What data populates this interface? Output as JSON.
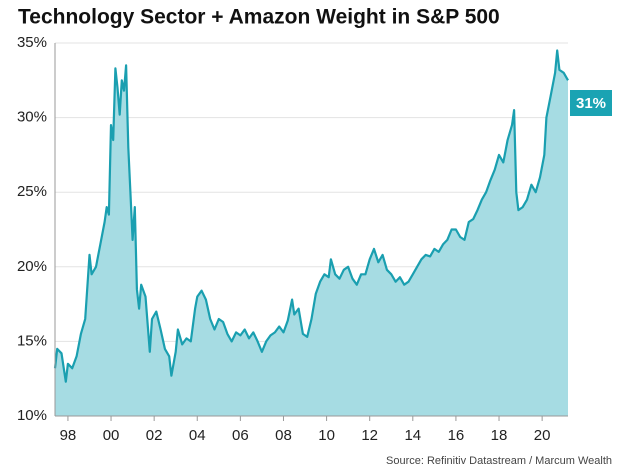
{
  "chart_data": {
    "type": "area",
    "title": "Technology Sector + Amazon Weight in S&P 500",
    "source": "Source: Refinitiv Datastream / Marcum Wealth",
    "annotation": "31%",
    "line_color": "#1a9fb0",
    "fill_color": "#a6dce3",
    "annotation_color": "#1aa3b3",
    "grid": true,
    "xlim": [
      1997.4,
      2021.2
    ],
    "xticks": [
      {
        "value": 1998,
        "label": "98"
      },
      {
        "value": 2000,
        "label": "00"
      },
      {
        "value": 2002,
        "label": "02"
      },
      {
        "value": 2004,
        "label": "04"
      },
      {
        "value": 2006,
        "label": "06"
      },
      {
        "value": 2008,
        "label": "08"
      },
      {
        "value": 2010,
        "label": "10"
      },
      {
        "value": 2012,
        "label": "12"
      },
      {
        "value": 2014,
        "label": "14"
      },
      {
        "value": 2016,
        "label": "16"
      },
      {
        "value": 2018,
        "label": "18"
      },
      {
        "value": 2020,
        "label": "20"
      }
    ],
    "ylim": [
      10,
      35
    ],
    "yticks": [
      {
        "value": 10,
        "label": "10%"
      },
      {
        "value": 15,
        "label": "15%"
      },
      {
        "value": 20,
        "label": "20%"
      },
      {
        "value": 25,
        "label": "25%"
      },
      {
        "value": 30,
        "label": "30%"
      },
      {
        "value": 35,
        "label": "35%"
      }
    ],
    "x": [
      1997.4,
      1997.5,
      1997.7,
      1997.9,
      1998.0,
      1998.2,
      1998.4,
      1998.6,
      1998.8,
      1999.0,
      1999.1,
      1999.3,
      1999.5,
      1999.7,
      1999.8,
      1999.9,
      2000.0,
      2000.1,
      2000.2,
      2000.3,
      2000.4,
      2000.5,
      2000.6,
      2000.7,
      2000.8,
      2000.9,
      2001.0,
      2001.1,
      2001.2,
      2001.3,
      2001.4,
      2001.6,
      2001.8,
      2001.9,
      2002.1,
      2002.3,
      2002.5,
      2002.7,
      2002.8,
      2003.0,
      2003.1,
      2003.3,
      2003.5,
      2003.7,
      2003.9,
      2004.0,
      2004.2,
      2004.4,
      2004.6,
      2004.8,
      2005.0,
      2005.2,
      2005.4,
      2005.6,
      2005.8,
      2006.0,
      2006.2,
      2006.4,
      2006.6,
      2006.8,
      2007.0,
      2007.2,
      2007.4,
      2007.6,
      2007.8,
      2008.0,
      2008.2,
      2008.4,
      2008.5,
      2008.7,
      2008.9,
      2009.1,
      2009.3,
      2009.5,
      2009.7,
      2009.9,
      2010.1,
      2010.2,
      2010.4,
      2010.6,
      2010.8,
      2011.0,
      2011.2,
      2011.4,
      2011.6,
      2011.8,
      2012.0,
      2012.2,
      2012.4,
      2012.6,
      2012.8,
      2013.0,
      2013.2,
      2013.4,
      2013.6,
      2013.8,
      2014.0,
      2014.2,
      2014.4,
      2014.6,
      2014.8,
      2015.0,
      2015.2,
      2015.4,
      2015.6,
      2015.8,
      2016.0,
      2016.2,
      2016.4,
      2016.6,
      2016.8,
      2017.0,
      2017.2,
      2017.4,
      2017.6,
      2017.8,
      2018.0,
      2018.2,
      2018.4,
      2018.6,
      2018.7,
      2018.8,
      2018.9,
      2019.1,
      2019.3,
      2019.5,
      2019.7,
      2019.9,
      2020.1,
      2020.2,
      2020.4,
      2020.6,
      2020.7,
      2020.8,
      2021.0,
      2021.2
    ],
    "values": [
      13.2,
      14.5,
      14.2,
      12.3,
      13.5,
      13.2,
      14.0,
      15.5,
      16.5,
      20.8,
      19.5,
      20.0,
      21.5,
      23.0,
      24.0,
      23.5,
      29.5,
      28.5,
      33.3,
      32.0,
      30.2,
      32.5,
      31.8,
      33.5,
      28.0,
      25.0,
      21.8,
      24.0,
      18.5,
      17.2,
      18.8,
      18.0,
      14.3,
      16.5,
      17.0,
      15.8,
      14.5,
      14.0,
      12.7,
      14.3,
      15.8,
      14.8,
      15.2,
      15.0,
      17.2,
      18.0,
      18.4,
      17.8,
      16.5,
      15.8,
      16.5,
      16.3,
      15.5,
      15.0,
      15.6,
      15.4,
      15.8,
      15.2,
      15.6,
      15.0,
      14.3,
      15.0,
      15.4,
      15.6,
      16.0,
      15.6,
      16.4,
      17.8,
      16.8,
      17.2,
      15.5,
      15.3,
      16.5,
      18.2,
      19.0,
      19.5,
      19.3,
      20.5,
      19.5,
      19.2,
      19.8,
      20.0,
      19.2,
      18.8,
      19.5,
      19.5,
      20.5,
      21.2,
      20.3,
      20.8,
      19.8,
      19.5,
      19.0,
      19.3,
      18.8,
      19.0,
      19.5,
      20.0,
      20.5,
      20.8,
      20.7,
      21.2,
      21.0,
      21.5,
      21.8,
      22.5,
      22.5,
      22.0,
      21.8,
      23.0,
      23.2,
      23.8,
      24.5,
      25.0,
      25.8,
      26.5,
      27.5,
      27.0,
      28.5,
      29.5,
      30.5,
      25.0,
      23.8,
      24.0,
      24.5,
      25.5,
      25.0,
      26.0,
      27.5,
      30.0,
      31.5,
      33.0,
      34.5,
      33.2,
      33.0,
      32.5
    ]
  }
}
